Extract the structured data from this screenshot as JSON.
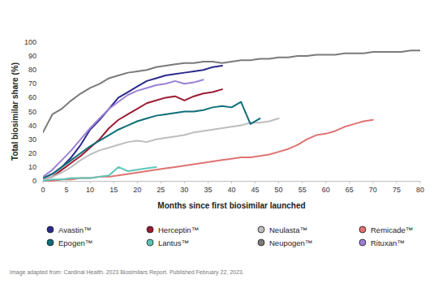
{
  "chart_data": {
    "type": "line",
    "x_label": "Months since first biosimilar launched",
    "y_label": "Total biosimilar share (%)",
    "source": "Image adapted from: Cardinal Health. 2023 Biosimilars Report. Published February 22, 2023.",
    "x": [
      0,
      2,
      4,
      6,
      8,
      10,
      12,
      14,
      16,
      18,
      20,
      22,
      24,
      26,
      28,
      30,
      32,
      34,
      36,
      38,
      40,
      42,
      44,
      46,
      48,
      50,
      52,
      54,
      56,
      58,
      60,
      62,
      64,
      66,
      68,
      70,
      72,
      74,
      76,
      78,
      80
    ],
    "xlim": [
      0,
      80
    ],
    "xticks": [
      0,
      5,
      10,
      15,
      20,
      25,
      30,
      35,
      40,
      45,
      50,
      55,
      60,
      65,
      70,
      75,
      80
    ],
    "ylim": [
      0,
      100
    ],
    "yticks": [
      0,
      10,
      20,
      30,
      40,
      50,
      60,
      70,
      80,
      90,
      100
    ],
    "grid": false,
    "legend": "bottom",
    "series": [
      {
        "name": "Avastin™",
        "color": "#2b2a8a",
        "values": [
          2,
          5,
          10,
          17,
          26,
          37,
          44,
          52,
          60,
          64,
          68,
          72,
          74,
          76,
          77,
          78,
          79,
          80,
          82,
          83,
          null,
          null,
          null,
          null,
          null,
          null,
          null,
          null,
          null,
          null,
          null,
          null,
          null,
          null,
          null,
          null,
          null,
          null,
          null,
          null,
          null
        ]
      },
      {
        "name": "Herceptin™",
        "color": "#9b1b30",
        "values": [
          1,
          3,
          8,
          13,
          18,
          24,
          30,
          38,
          44,
          48,
          52,
          56,
          58,
          60,
          61,
          58,
          61,
          63,
          64,
          66,
          null,
          null,
          null,
          null,
          null,
          null,
          null,
          null,
          null,
          null,
          null,
          null,
          null,
          null,
          null,
          null,
          null,
          null,
          null,
          null,
          null
        ]
      },
      {
        "name": "Neulasta™",
        "color": "#bdbdbd",
        "values": [
          1,
          3,
          6,
          10,
          15,
          19,
          22,
          24,
          26,
          28,
          29,
          28,
          30,
          31,
          32,
          33,
          35,
          36,
          37,
          38,
          39,
          40,
          42,
          42,
          43,
          45,
          null,
          null,
          null,
          null,
          null,
          null,
          null,
          null,
          null,
          null,
          null,
          null,
          null,
          null,
          null
        ]
      },
      {
        "name": "Remicade™",
        "color": "#e07272",
        "values": [
          0,
          0,
          1,
          1,
          2,
          2,
          3,
          3,
          4,
          5,
          6,
          7,
          8,
          9,
          10,
          11,
          12,
          13,
          14,
          15,
          16,
          17,
          17,
          18,
          19,
          21,
          23,
          26,
          30,
          33,
          34,
          36,
          39,
          41,
          43,
          44,
          null,
          null,
          null,
          null,
          null
        ]
      },
      {
        "name": "Epogen™",
        "color": "#0f6e78",
        "values": [
          2,
          5,
          10,
          15,
          20,
          25,
          29,
          33,
          37,
          40,
          43,
          45,
          47,
          48,
          49,
          50,
          50,
          51,
          53,
          54,
          53,
          57,
          41,
          45,
          null,
          null,
          null,
          null,
          null,
          null,
          null,
          null,
          null,
          null,
          null,
          null,
          null,
          null,
          null,
          null,
          null
        ]
      },
      {
        "name": "Lantus™",
        "color": "#5cc6b8",
        "values": [
          0,
          1,
          1,
          2,
          2,
          2,
          3,
          4,
          10,
          7,
          8,
          9,
          10,
          null,
          null,
          null,
          null,
          null,
          null,
          null,
          null,
          null,
          null,
          null,
          null,
          null,
          null,
          null,
          null,
          null,
          null,
          null,
          null,
          null,
          null,
          null,
          null,
          null,
          null,
          null,
          null
        ]
      },
      {
        "name": "Neupogen™",
        "color": "#7a7a7a",
        "values": [
          35,
          48,
          52,
          58,
          63,
          67,
          70,
          74,
          76,
          78,
          79,
          80,
          82,
          83,
          84,
          85,
          85,
          86,
          86,
          85,
          86,
          87,
          87,
          88,
          88,
          89,
          89,
          90,
          90,
          91,
          91,
          91,
          92,
          92,
          92,
          93,
          93,
          93,
          93,
          94,
          94
        ]
      },
      {
        "name": "Rituxan™",
        "color": "#9c80d6",
        "values": [
          3,
          8,
          15,
          22,
          30,
          38,
          45,
          52,
          57,
          62,
          65,
          67,
          69,
          70,
          72,
          70,
          71,
          73,
          null,
          null,
          null,
          null,
          null,
          null,
          null,
          null,
          null,
          null,
          null,
          null,
          null,
          null,
          null,
          null,
          null,
          null,
          null,
          null,
          null,
          null,
          null
        ]
      }
    ]
  }
}
